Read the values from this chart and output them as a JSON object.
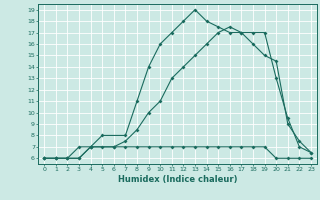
{
  "xlabel": "Humidex (Indice chaleur)",
  "bg_color": "#cce9e4",
  "line_color": "#1a6b5e",
  "grid_color": "#ffffff",
  "xlim": [
    -0.5,
    23.5
  ],
  "ylim": [
    5.5,
    19.5
  ],
  "xticks": [
    0,
    1,
    2,
    3,
    4,
    5,
    6,
    7,
    8,
    9,
    10,
    11,
    12,
    13,
    14,
    15,
    16,
    17,
    18,
    19,
    20,
    21,
    22,
    23
  ],
  "yticks": [
    6,
    7,
    8,
    9,
    10,
    11,
    12,
    13,
    14,
    15,
    16,
    17,
    18,
    19
  ],
  "line1_x": [
    0,
    1,
    2,
    3,
    4,
    5,
    6,
    7,
    8,
    9,
    10,
    11,
    12,
    13,
    14,
    15,
    16,
    17,
    18,
    19,
    20,
    21,
    22,
    23
  ],
  "line1_y": [
    6,
    6,
    6,
    7,
    7,
    7,
    7,
    7,
    7,
    7,
    7,
    7,
    7,
    7,
    7,
    7,
    7,
    7,
    7,
    7,
    6,
    6,
    6,
    6
  ],
  "line2_x": [
    0,
    1,
    2,
    3,
    4,
    5,
    7,
    8,
    9,
    10,
    11,
    12,
    13,
    14,
    15,
    16,
    17,
    18,
    19,
    20,
    21,
    22,
    23
  ],
  "line2_y": [
    6,
    6,
    6,
    6,
    7,
    8,
    8,
    11,
    14,
    16,
    17,
    18,
    19,
    18,
    17.5,
    17,
    17,
    16,
    15,
    14.5,
    9,
    7.5,
    6.5
  ],
  "line3_x": [
    0,
    1,
    2,
    3,
    4,
    6,
    7,
    8,
    9,
    10,
    11,
    12,
    13,
    14,
    15,
    16,
    17,
    18,
    19,
    20,
    21,
    22,
    23
  ],
  "line3_y": [
    6,
    6,
    6,
    6,
    7,
    7,
    7.5,
    8.5,
    10,
    11,
    13,
    14,
    15,
    16,
    17,
    17.5,
    17,
    17,
    17,
    13,
    9.5,
    7,
    6.5
  ]
}
